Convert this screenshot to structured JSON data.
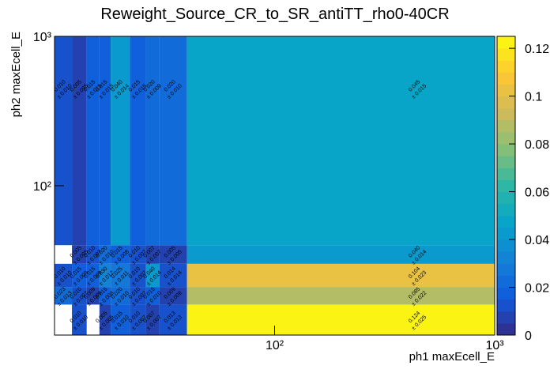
{
  "chart_data": {
    "type": "heatmap",
    "title": "Reweight_Source_CR_to_SR_antiTT_rho0-40CR",
    "x_label": "ph1 maxEcell_E",
    "y_label": "ph2 maxEcell_E",
    "log_x": true,
    "log_y": true,
    "xlim": [
      10,
      1000
    ],
    "ylim": [
      10,
      1000
    ],
    "xticks": [
      {
        "value": 100,
        "label": "10²"
      },
      {
        "value": 1000,
        "label": "10³"
      }
    ],
    "yticks": [
      {
        "value": 100,
        "label": "10²"
      },
      {
        "value": 1000,
        "label": "10³"
      }
    ],
    "x_edges": [
      10,
      12,
      14,
      16,
      18,
      22,
      26,
      30,
      40,
      5000
    ],
    "y_edges": [
      10,
      16,
      21,
      30,
      40,
      5000
    ],
    "values": [
      [
        null,
        0.01,
        null,
        0.005,
        0.015,
        0.01,
        0.007,
        0.013,
        0.124
      ],
      [
        0.023,
        0.01,
        0.009,
        0.015,
        0.02,
        0.01,
        0.015,
        0.009,
        0.085
      ],
      [
        0.01,
        0.015,
        0.015,
        0.03,
        0.025,
        0.01,
        0.04,
        0.014,
        0.104
      ],
      [
        null,
        0.005,
        0.01,
        0.02,
        0.015,
        0.01,
        0.007,
        0.005,
        0.04
      ],
      [
        0.01,
        0.005,
        0.015,
        0.015,
        0.04,
        0.015,
        0.02,
        0.02,
        0.045
      ]
    ],
    "value_labels": [
      [
        null,
        "0.010",
        null,
        "0.005",
        "0.015",
        "0.010",
        "0.007",
        "0.013",
        "0.124"
      ],
      [
        "0.023",
        "0.010",
        "0.009",
        "0.015",
        "0.020",
        "0.010",
        "0.015",
        "0.009",
        "0.085"
      ],
      [
        "0.010",
        "0.015",
        "0.015",
        "0.030",
        "0.025",
        "0.010",
        "0.040",
        "0.014",
        "0.104"
      ],
      [
        null,
        "0.005",
        "0.010",
        "0.020",
        "0.015",
        "0.010",
        "0.007",
        "0.005",
        "0.040"
      ],
      [
        "0.010",
        "0.005",
        "0.015",
        "0.015",
        "0.040",
        "0.015",
        "0.020",
        "0.020",
        "0.045"
      ]
    ],
    "error_labels": [
      [
        null,
        "± 0.010",
        null,
        "± 0.005",
        "± 0.010",
        "± 0.007",
        "± 0.007",
        "± 0.013",
        "± 0.025"
      ],
      [
        "± 0.013",
        "± 0.007",
        "± 0.009",
        "± 0.008",
        "± 0.010",
        "± 0.007",
        "± 0.010",
        "± 0.009",
        "± 0.022"
      ],
      [
        "± 0.010",
        "± 0.009",
        "± 0.009",
        "± 0.012",
        "± 0.011",
        "± 0.007",
        "± 0.014",
        "± 0.014",
        "± 0.023"
      ],
      [
        null,
        "± 0.005",
        "± 0.007",
        "± 0.010",
        "± 0.008",
        "± 0.007",
        "± 0.007",
        "± 0.005",
        "± 0.014"
      ],
      [
        "± 0.010",
        "± 0.005",
        "± 0.015",
        "± 0.015",
        "± 0.014",
        "± 0.015",
        "± 0.009",
        "± 0.010",
        "± 0.015"
      ]
    ],
    "zlim": [
      0,
      0.125
    ],
    "zticks": [
      0,
      0.02,
      0.04,
      0.06,
      0.08,
      0.1,
      0.12
    ],
    "color_levels": 25,
    "palette": [
      "#352a87",
      "#0f5cdd",
      "#1481d6",
      "#06a4ca",
      "#2eb7a4",
      "#87bf77",
      "#d1bb59",
      "#fec832",
      "#f9fb0e"
    ]
  }
}
